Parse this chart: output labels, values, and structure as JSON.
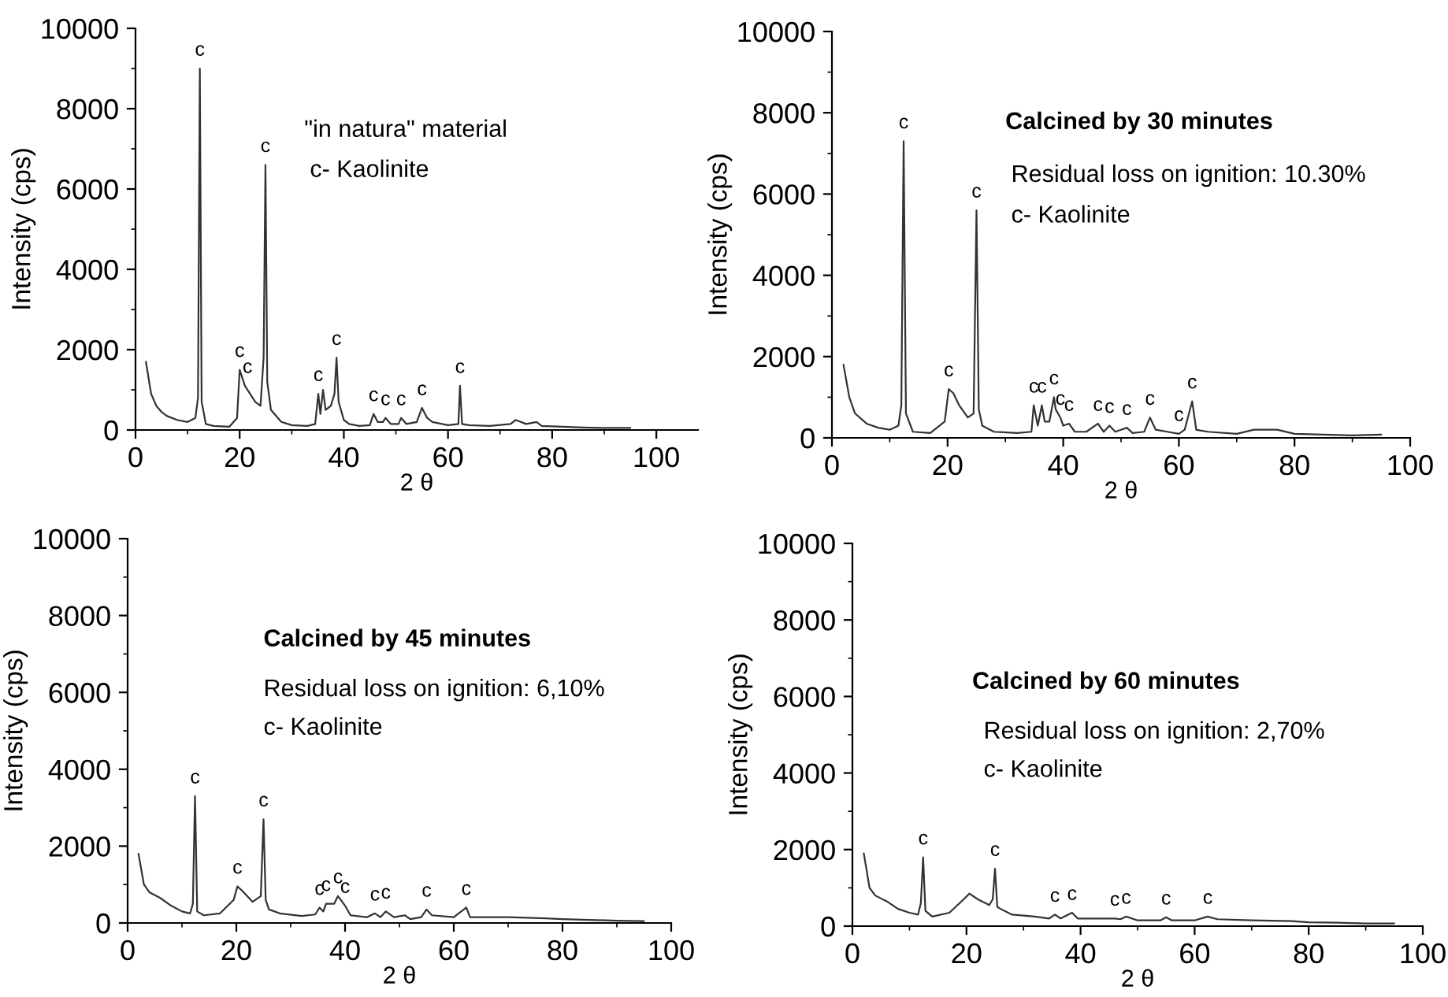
{
  "chart_data": [
    {
      "type": "line",
      "xlabel": "2 θ",
      "ylabel": "Intensity (cps)",
      "xlim": [
        0,
        108
      ],
      "xticks": [
        0,
        20,
        40,
        60,
        80,
        100
      ],
      "ylim": [
        0,
        10000
      ],
      "yticks": [
        0,
        2000,
        4000,
        6000,
        8000,
        10000
      ],
      "grid": false,
      "legend": false,
      "marker": "none",
      "line_style": "solid",
      "annotations": [
        "\"in natura\" material",
        "c- Kaolinite",
        {
          "text": "c",
          "x": 12.35,
          "y": 9000
        },
        {
          "text": "c",
          "x": 20,
          "y": 1500
        },
        {
          "text": "c",
          "x": 21.5,
          "y": 1100
        },
        {
          "text": "c",
          "x": 24.95,
          "y": 6600
        },
        {
          "text": "c",
          "x": 35.1,
          "y": 900
        },
        {
          "text": "c",
          "x": 38.6,
          "y": 1800
        },
        {
          "text": "c",
          "x": 45.7,
          "y": 400
        },
        {
          "text": "c",
          "x": 48,
          "y": 300
        },
        {
          "text": "c",
          "x": 51,
          "y": 300
        },
        {
          "text": "c",
          "x": 55,
          "y": 550
        },
        {
          "text": "c",
          "x": 62.3,
          "y": 1100
        }
      ],
      "series": [
        {
          "color": "#333333",
          "x": [
            2,
            2.5,
            3,
            4,
            5,
            6,
            8,
            10,
            11.5,
            12.0,
            12.35,
            12.7,
            13.5,
            15,
            18,
            19.5,
            20,
            20.5,
            21,
            22,
            23,
            24,
            24.6,
            24.95,
            25.3,
            26,
            28,
            30,
            33,
            34.5,
            35.1,
            35.5,
            36.0,
            36.5,
            37.5,
            38.2,
            38.6,
            39.0,
            40,
            41,
            43,
            45,
            45.7,
            46.5,
            47.5,
            48,
            49,
            50.5,
            51,
            52,
            54,
            55,
            56,
            57,
            60,
            62,
            62.3,
            62.7,
            64,
            68,
            72,
            73,
            75,
            77,
            78,
            82,
            86,
            90,
            95
          ],
          "values": [
            1700,
            1300,
            900,
            600,
            450,
            350,
            250,
            200,
            300,
            800,
            9000,
            700,
            150,
            100,
            80,
            300,
            1500,
            1300,
            1100,
            900,
            700,
            600,
            1800,
            6600,
            1200,
            500,
            200,
            120,
            100,
            150,
            900,
            400,
            1000,
            500,
            600,
            900,
            1800,
            700,
            250,
            150,
            100,
            120,
            400,
            200,
            200,
            300,
            150,
            150,
            300,
            150,
            200,
            550,
            300,
            200,
            120,
            150,
            1100,
            150,
            120,
            100,
            150,
            250,
            150,
            200,
            100,
            80,
            60,
            50,
            50
          ]
        }
      ]
    },
    {
      "type": "line",
      "title": "Calcined by 30 minutes",
      "xlabel": "2 θ",
      "ylabel": "Intensity (cps)",
      "xlim": [
        0,
        100
      ],
      "xticks": [
        0,
        20,
        40,
        60,
        80,
        100
      ],
      "ylim": [
        0,
        10000
      ],
      "yticks": [
        0,
        2000,
        4000,
        6000,
        8000,
        10000
      ],
      "grid": false,
      "legend": false,
      "marker": "none",
      "line_style": "solid",
      "annotations": [
        "Residual loss on ignition: 10.30%",
        "c- Kaolinite",
        {
          "text": "c",
          "x": 12.4,
          "y": 7300
        },
        {
          "text": "c",
          "x": 20.2,
          "y": 1200
        },
        {
          "text": "c",
          "x": 25.0,
          "y": 5600
        },
        {
          "text": "c",
          "x": 34.9,
          "y": 800
        },
        {
          "text": "c",
          "x": 36.3,
          "y": 800
        },
        {
          "text": "c",
          "x": 38.4,
          "y": 1000
        },
        {
          "text": "c",
          "x": 39.5,
          "y": 500
        },
        {
          "text": "c",
          "x": 41,
          "y": 350
        },
        {
          "text": "c",
          "x": 46,
          "y": 350
        },
        {
          "text": "c",
          "x": 48,
          "y": 300
        },
        {
          "text": "c",
          "x": 51,
          "y": 250
        },
        {
          "text": "c",
          "x": 55,
          "y": 500
        },
        {
          "text": "c",
          "x": 60,
          "y": 100
        },
        {
          "text": "c",
          "x": 62.3,
          "y": 900
        }
      ],
      "series": [
        {
          "color": "#333333",
          "x": [
            2,
            3,
            4,
            6,
            8,
            10,
            11.5,
            12.0,
            12.4,
            12.8,
            14,
            17,
            19.5,
            20.2,
            21,
            22,
            23.5,
            24.5,
            25.0,
            25.4,
            26,
            28,
            32,
            34.5,
            34.9,
            35.6,
            36.3,
            36.8,
            37.6,
            38.4,
            38.7,
            39.5,
            40,
            41,
            42,
            44,
            46,
            47,
            48,
            49,
            50,
            51,
            52,
            54,
            55,
            56,
            58,
            60,
            61,
            62.3,
            63,
            65,
            70,
            73,
            77,
            80,
            85,
            90,
            95
          ],
          "values": [
            1800,
            1000,
            600,
            350,
            250,
            200,
            300,
            800,
            7300,
            600,
            150,
            120,
            400,
            1200,
            1100,
            800,
            500,
            600,
            5600,
            700,
            300,
            150,
            120,
            150,
            800,
            300,
            800,
            400,
            400,
            1000,
            700,
            500,
            300,
            350,
            150,
            150,
            350,
            150,
            300,
            150,
            200,
            250,
            120,
            150,
            500,
            200,
            150,
            100,
            200,
            900,
            200,
            150,
            100,
            200,
            200,
            100,
            80,
            60,
            80
          ]
        }
      ]
    },
    {
      "type": "line",
      "title": "Calcined by 45 minutes",
      "xlabel": "2 θ",
      "ylabel": "Intensity (cps)",
      "xlim": [
        0,
        100
      ],
      "xticks": [
        0,
        20,
        40,
        60,
        80,
        100
      ],
      "ylim": [
        0,
        10000
      ],
      "yticks": [
        0,
        2000,
        4000,
        6000,
        8000,
        10000
      ],
      "grid": false,
      "legend": false,
      "marker": "none",
      "line_style": "solid",
      "annotations": [
        "Residual loss on ignition: 6,10%",
        "c- Kaolinite",
        {
          "text": "c",
          "x": 12.4,
          "y": 3300
        },
        {
          "text": "c",
          "x": 20.2,
          "y": 950
        },
        {
          "text": "c",
          "x": 25.0,
          "y": 2700
        },
        {
          "text": "c",
          "x": 35.3,
          "y": 400
        },
        {
          "text": "c",
          "x": 36.5,
          "y": 500
        },
        {
          "text": "c",
          "x": 38.7,
          "y": 700
        },
        {
          "text": "c",
          "x": 40,
          "y": 450
        },
        {
          "text": "c",
          "x": 45.5,
          "y": 250
        },
        {
          "text": "c",
          "x": 47.5,
          "y": 300
        },
        {
          "text": "c",
          "x": 55,
          "y": 350
        },
        {
          "text": "c",
          "x": 62.3,
          "y": 400
        }
      ],
      "series": [
        {
          "color": "#333333",
          "x": [
            2,
            3,
            4,
            6,
            8,
            10,
            11.5,
            12.0,
            12.4,
            12.8,
            14,
            17,
            19.5,
            20.2,
            21,
            23,
            24.5,
            25.0,
            25.4,
            26,
            28,
            32,
            34.5,
            35.3,
            36,
            36.5,
            38,
            38.7,
            40,
            41,
            44,
            45.5,
            46.5,
            47.5,
            49,
            51,
            52,
            54,
            55,
            56,
            60,
            62.3,
            63,
            65,
            70,
            77,
            80,
            85,
            90,
            95
          ],
          "values": [
            1800,
            1000,
            800,
            650,
            450,
            300,
            250,
            500,
            3300,
            300,
            200,
            250,
            600,
            950,
            850,
            550,
            700,
            2700,
            600,
            350,
            250,
            180,
            220,
            400,
            300,
            500,
            500,
            700,
            450,
            200,
            150,
            250,
            150,
            300,
            150,
            200,
            100,
            150,
            350,
            200,
            150,
            400,
            150,
            150,
            150,
            120,
            100,
            80,
            60,
            50
          ]
        }
      ]
    },
    {
      "type": "line",
      "title": "Calcined by 60 minutes",
      "xlabel": "2 θ",
      "ylabel": "Intensity (cps)",
      "xlim": [
        0,
        100
      ],
      "xticks": [
        0,
        20,
        40,
        60,
        80,
        100
      ],
      "ylim": [
        0,
        10000
      ],
      "yticks": [
        0,
        2000,
        4000,
        6000,
        8000,
        10000
      ],
      "grid": false,
      "legend": false,
      "marker": "none",
      "line_style": "solid",
      "annotations": [
        "Residual loss on ignition: 2,70%",
        "c- Kaolinite",
        {
          "text": "c",
          "x": 12.4,
          "y": 1800
        },
        {
          "text": "c",
          "x": 25.0,
          "y": 1500
        },
        {
          "text": "c",
          "x": 35.5,
          "y": 300
        },
        {
          "text": "c",
          "x": 38.5,
          "y": 350
        },
        {
          "text": "c",
          "x": 46,
          "y": 200
        },
        {
          "text": "c",
          "x": 48,
          "y": 250
        },
        {
          "text": "c",
          "x": 55,
          "y": 230
        },
        {
          "text": "c",
          "x": 62.3,
          "y": 250
        }
      ],
      "series": [
        {
          "color": "#333333",
          "x": [
            2,
            3,
            4,
            6,
            8,
            10,
            11.5,
            12.0,
            12.4,
            12.8,
            14,
            17,
            19.5,
            20.5,
            22,
            24,
            24.6,
            25.0,
            25.4,
            26,
            28,
            32,
            34.5,
            35.5,
            36.5,
            38.5,
            39.5,
            42,
            46,
            47,
            48,
            50,
            54,
            55,
            56,
            60,
            62.3,
            64,
            70,
            77,
            80,
            85,
            90,
            95
          ],
          "values": [
            1900,
            1000,
            800,
            650,
            450,
            350,
            300,
            600,
            1800,
            400,
            250,
            350,
            700,
            850,
            700,
            550,
            700,
            1500,
            500,
            450,
            300,
            250,
            200,
            300,
            200,
            350,
            200,
            200,
            200,
            180,
            250,
            150,
            150,
            230,
            150,
            150,
            250,
            180,
            150,
            130,
            100,
            90,
            70,
            70
          ]
        }
      ]
    }
  ]
}
